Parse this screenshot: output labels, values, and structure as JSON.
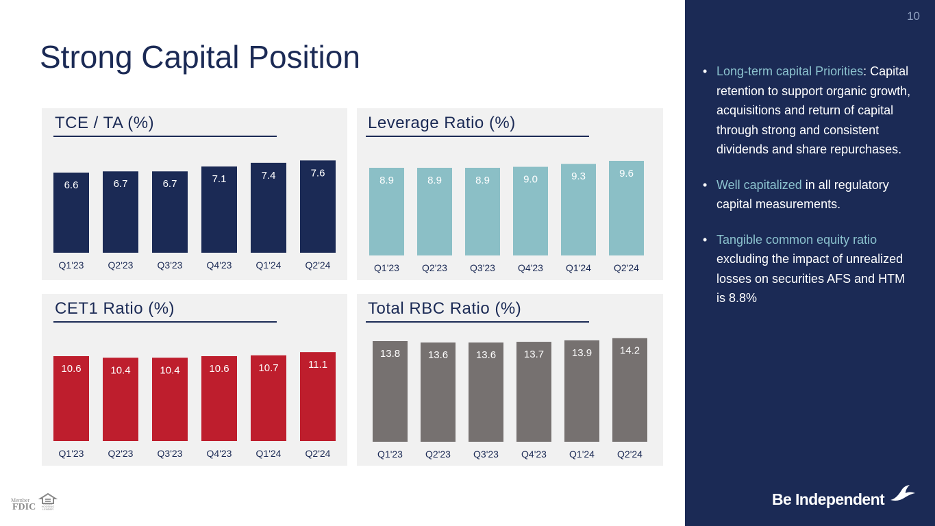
{
  "slide": {
    "title": "Strong Capital Position",
    "page_number": "10"
  },
  "sidebar": {
    "bullets": [
      {
        "highlight": "Long-term capital Priorities",
        "text": ": Capital retention to support organic growth, acquisitions and return of capital through strong and consistent dividends and share repurchases."
      },
      {
        "highlight": "Well capitalized",
        "text": " in all regulatory capital measurements."
      },
      {
        "highlight": "Tangible common equity ratio",
        "text": " excluding the impact of unrealized losses on securities AFS and HTM  is 8.8%"
      }
    ],
    "brand": "Be Independent",
    "background_color": "#1b2a55",
    "highlight_color": "#8cc3cf"
  },
  "footer": {
    "fdic_member": "Member",
    "fdic": "FDIC",
    "equal_housing": "EQUAL HOUSING LENDER"
  },
  "chart_data": [
    {
      "type": "bar",
      "title": "TCE / TA (%)",
      "categories": [
        "Q1'23",
        "Q2'23",
        "Q3'23",
        "Q4'23",
        "Q1'24",
        "Q2'24"
      ],
      "values": [
        6.6,
        6.7,
        6.7,
        7.1,
        7.4,
        7.6
      ],
      "value_labels": [
        "6.6",
        "6.7",
        "6.7",
        "7.1",
        "7.4",
        "7.6"
      ],
      "color": "#1b2a55",
      "label_color": "#ffffff",
      "xlabel": "",
      "ylabel": "",
      "grid": false
    },
    {
      "type": "bar",
      "title": "Leverage Ratio (%)",
      "categories": [
        "Q1'23",
        "Q2'23",
        "Q3'23",
        "Q4'23",
        "Q1'24",
        "Q2'24"
      ],
      "values": [
        8.9,
        8.9,
        8.9,
        9.0,
        9.3,
        9.6
      ],
      "value_labels": [
        "8.9",
        "8.9",
        "8.9",
        "9.0",
        "9.3",
        "9.6"
      ],
      "color": "#8bbfc6",
      "label_color": "#ffffff",
      "xlabel": "",
      "ylabel": "",
      "grid": false
    },
    {
      "type": "bar",
      "title": "CET1 Ratio (%)",
      "categories": [
        "Q1'23",
        "Q2'23",
        "Q3'23",
        "Q4'23",
        "Q1'24",
        "Q2'24"
      ],
      "values": [
        10.6,
        10.4,
        10.4,
        10.6,
        10.7,
        11.1
      ],
      "value_labels": [
        "10.6",
        "10.4",
        "10.4",
        "10.6",
        "10.7",
        "11.1"
      ],
      "color": "#be1e2d",
      "label_color": "#ffffff",
      "xlabel": "",
      "ylabel": "",
      "grid": false
    },
    {
      "type": "bar",
      "title": "Total RBC Ratio (%)",
      "categories": [
        "Q1'23",
        "Q2'23",
        "Q3'23",
        "Q4'23",
        "Q1'24",
        "Q2'24"
      ],
      "values": [
        13.8,
        13.6,
        13.6,
        13.7,
        13.9,
        14.2
      ],
      "value_labels": [
        "13.8",
        "13.6",
        "13.6",
        "13.7",
        "13.9",
        "14.2"
      ],
      "color": "#767170",
      "label_color": "#ffffff",
      "xlabel": "",
      "ylabel": "",
      "grid": false
    }
  ]
}
